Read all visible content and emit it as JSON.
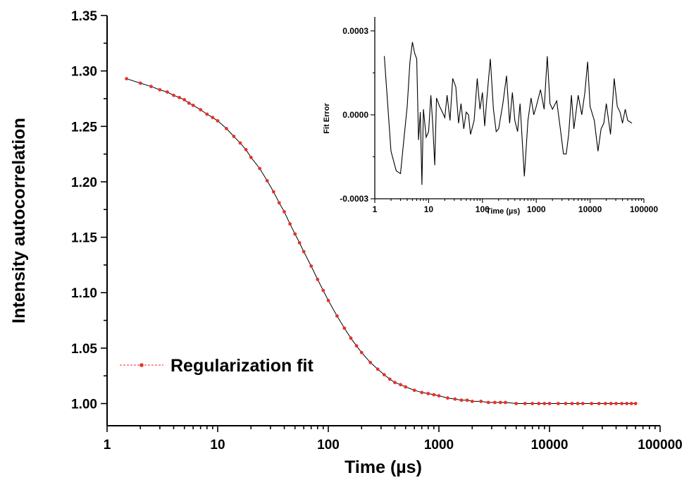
{
  "chart_data": [
    {
      "type": "scatter",
      "xlabel": "Time (µs)",
      "ylabel": "Intensity autocorrelation",
      "xscale": "log",
      "xlim": [
        1,
        100000
      ],
      "ylim": [
        0.98,
        1.35
      ],
      "xticks": [
        "1",
        "10",
        "100",
        "1000",
        "10000",
        "100000"
      ],
      "yticks": [
        "1.00",
        "1.05",
        "1.10",
        "1.15",
        "1.20",
        "1.25",
        "1.30",
        "1.35"
      ],
      "legend": {
        "position": "lower-left",
        "label": "Regularization fit"
      },
      "series": [
        {
          "name": "Regularization fit",
          "color": "#e8322a",
          "line_color": "#000000",
          "x": [
            1.5,
            2,
            2.5,
            3,
            3.5,
            4,
            4.5,
            5,
            5.5,
            6,
            7,
            8,
            9,
            10,
            12,
            14,
            16,
            18,
            20,
            24,
            28,
            32,
            36,
            40,
            45,
            50,
            55,
            60,
            70,
            80,
            90,
            100,
            120,
            140,
            160,
            180,
            200,
            240,
            280,
            320,
            360,
            400,
            450,
            500,
            600,
            700,
            800,
            900,
            1000,
            1200,
            1400,
            1600,
            1800,
            2000,
            2400,
            2800,
            3200,
            3600,
            4000,
            5000,
            6000,
            7000,
            8000,
            9000,
            10000,
            12000,
            14000,
            16000,
            18000,
            20000,
            24000,
            28000,
            32000,
            36000,
            40000,
            45000,
            50000,
            55000,
            60000
          ],
          "y": [
            1.293,
            1.289,
            1.286,
            1.283,
            1.281,
            1.278,
            1.276,
            1.274,
            1.271,
            1.269,
            1.265,
            1.261,
            1.258,
            1.255,
            1.248,
            1.241,
            1.235,
            1.229,
            1.222,
            1.212,
            1.201,
            1.191,
            1.181,
            1.173,
            1.162,
            1.153,
            1.145,
            1.137,
            1.124,
            1.112,
            1.102,
            1.093,
            1.079,
            1.068,
            1.059,
            1.052,
            1.046,
            1.037,
            1.031,
            1.026,
            1.022,
            1.019,
            1.017,
            1.015,
            1.012,
            1.01,
            1.009,
            1.008,
            1.007,
            1.005,
            1.004,
            1.003,
            1.003,
            1.002,
            1.002,
            1.001,
            1.001,
            1.001,
            1.001,
            1.0,
            1.0,
            1.0,
            1.0,
            1.0,
            1.0,
            1.0,
            1.0,
            1.0,
            1.0,
            1.0,
            1.0,
            1.0,
            1.0,
            1.0,
            1.0,
            1.0,
            1.0,
            1.0,
            1.0
          ]
        }
      ]
    },
    {
      "type": "line",
      "xlabel": "Time (µs)",
      "ylabel": "Fit Error",
      "xscale": "log",
      "xlim": [
        1,
        100000
      ],
      "ylim": [
        -0.0003,
        0.00035
      ],
      "xticks": [
        "1",
        "10",
        "100",
        "1000",
        "10000",
        "100000"
      ],
      "yticks": [
        "-0.0003",
        "0.0000",
        "0.0003"
      ],
      "series": [
        {
          "color": "#000000",
          "x": [
            1.5,
            2,
            2.5,
            3,
            3.5,
            4,
            4.5,
            5,
            5.5,
            6,
            6.5,
            7,
            7.5,
            8,
            9,
            10,
            11,
            12,
            13,
            14,
            16,
            18,
            20,
            22,
            25,
            28,
            32,
            36,
            40,
            45,
            50,
            55,
            60,
            70,
            80,
            90,
            100,
            110,
            120,
            140,
            160,
            180,
            200,
            240,
            280,
            320,
            360,
            400,
            450,
            500,
            600,
            700,
            800,
            900,
            1000,
            1200,
            1400,
            1600,
            1800,
            2000,
            2400,
            2800,
            3200,
            3600,
            4000,
            4500,
            5000,
            6000,
            7000,
            8000,
            9000,
            10000,
            12000,
            14000,
            16000,
            18000,
            20000,
            24000,
            28000,
            32000,
            36000,
            40000,
            45000,
            50000,
            60000
          ],
          "y": [
            0.00021,
            -0.00013,
            -0.0002,
            -0.00021,
            -8e-05,
            3e-05,
            0.00019,
            0.00026,
            0.00022,
            0.0002,
            -9e-05,
            1e-05,
            -0.00025,
            2e-05,
            -8e-05,
            -6e-05,
            7e-05,
            -4e-05,
            -0.00018,
            6e-05,
            3e-05,
            1e-05,
            -1e-05,
            7e-05,
            -2e-05,
            0.00013,
            0.0001,
            -3e-05,
            4e-05,
            -5e-05,
            1e-05,
            0.0,
            -7e-05,
            -2e-05,
            0.00013,
            2e-05,
            8e-05,
            -4e-05,
            5e-05,
            0.0002,
            2e-05,
            -6e-05,
            -5e-05,
            4e-05,
            0.00014,
            -3e-05,
            8e-05,
            -2e-05,
            -6e-05,
            4e-05,
            -0.00022,
            -2e-05,
            6e-05,
            0.0,
            3e-05,
            9e-05,
            2e-05,
            0.00021,
            4e-05,
            2e-05,
            5e-05,
            -5e-05,
            -0.00014,
            -0.00014,
            -7e-05,
            7e-05,
            -5e-05,
            7e-05,
            0.0,
            8e-05,
            0.00019,
            3e-05,
            -2e-05,
            -0.00013,
            -5e-05,
            -3e-05,
            4e-05,
            -7e-05,
            0.00013,
            3e-05,
            1e-05,
            -3e-05,
            2e-05,
            -2e-05,
            -3e-05
          ]
        }
      ]
    }
  ]
}
